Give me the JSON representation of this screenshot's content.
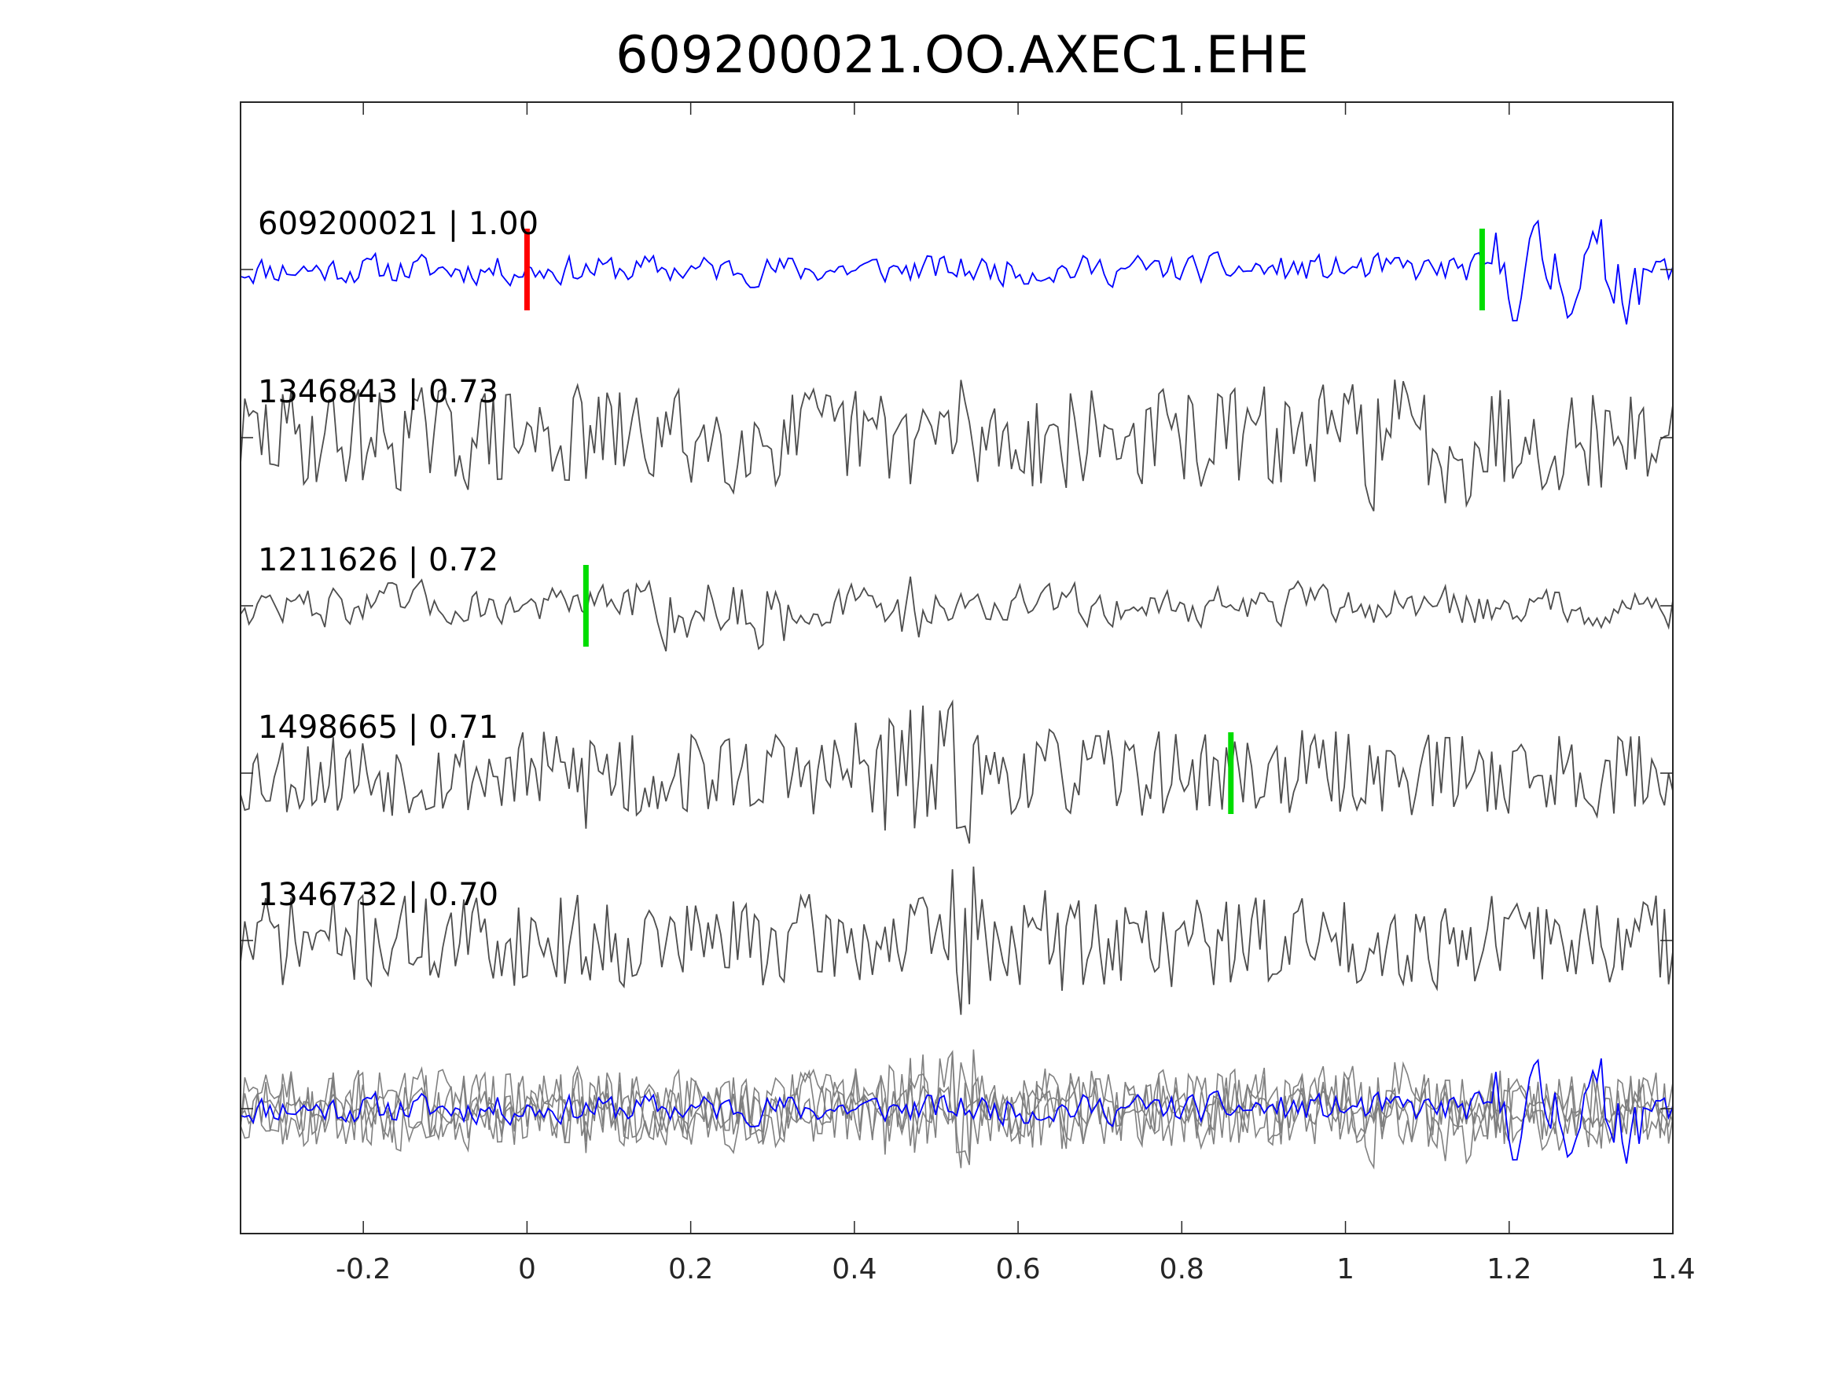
{
  "chart_data": {
    "type": "line",
    "title": "609200021.OO.AXEC1.EHE",
    "xlabel": "",
    "ylabel": "",
    "xlim": [
      -0.35,
      1.4
    ],
    "x_ticks": [
      "-0.2",
      "0",
      "0.2",
      "0.4",
      "0.6",
      "0.8",
      "1",
      "1.2",
      "1.4"
    ],
    "x_tick_values": [
      -0.2,
      0,
      0.2,
      0.4,
      0.6,
      0.8,
      1.0,
      1.2,
      1.4
    ],
    "grid": false,
    "colors": {
      "template": "#0000ff",
      "match": "#4d4d4d",
      "overlay": "#808080",
      "pick_red": "#ff0000",
      "pick_green": "#00dd00",
      "axes": "#262626"
    },
    "traces": [
      {
        "label": "609200021 | 1.00",
        "id": "609200021",
        "correlation": 1.0,
        "color": "#0000ff",
        "picks": [
          {
            "t": 0.0,
            "color": "#ff0000"
          },
          {
            "t": 1.167,
            "color": "#00dd00"
          }
        ]
      },
      {
        "label": "1346843 | 0.73",
        "id": "1346843",
        "correlation": 0.73,
        "color": "#4d4d4d",
        "picks": []
      },
      {
        "label": "1211626 | 0.72",
        "id": "1211626",
        "correlation": 0.72,
        "color": "#4d4d4d",
        "picks": [
          {
            "t": 0.072,
            "color": "#00dd00"
          }
        ]
      },
      {
        "label": "1498665 | 0.71",
        "id": "1498665",
        "correlation": 0.71,
        "color": "#4d4d4d",
        "picks": [
          {
            "t": 0.86,
            "color": "#00dd00"
          }
        ]
      },
      {
        "label": "1346732 | 0.70",
        "id": "1346732",
        "correlation": 0.7,
        "color": "#4d4d4d",
        "picks": []
      }
    ],
    "stacked_overlay": true
  }
}
